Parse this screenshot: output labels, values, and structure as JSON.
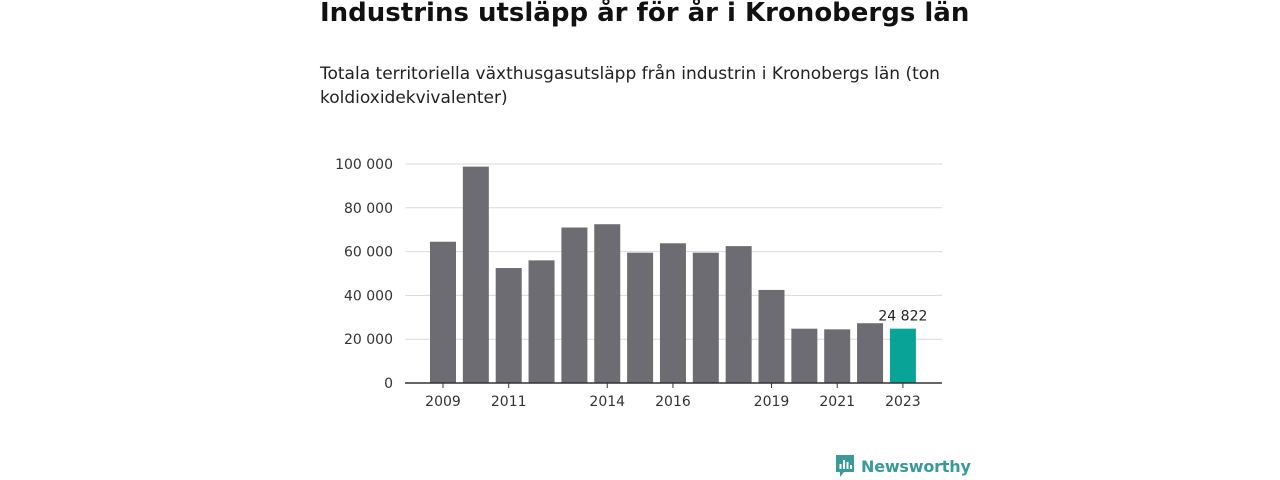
{
  "title": "Industrins utsläpp år för år i Kronobergs län",
  "subtitle": "Totala territoriella växthusgasutsläpp från industrin i Kronobergs län (ton koldioxidekvivalenter)",
  "brand": {
    "name": "Newsworthy",
    "color": "#3a9a9a"
  },
  "chart_data": {
    "type": "bar",
    "categories": [
      "2009",
      "2010",
      "2011",
      "2012",
      "2013",
      "2014",
      "2015",
      "2016",
      "2017",
      "2018",
      "2019",
      "2020",
      "2021",
      "2022",
      "2023"
    ],
    "values": [
      64500,
      98800,
      52500,
      56000,
      71000,
      72500,
      59500,
      63800,
      59500,
      62500,
      42500,
      24800,
      24500,
      27300,
      24822
    ],
    "x_tick_labels": [
      "2009",
      "2011",
      "2014",
      "2016",
      "2019",
      "2021",
      "2023"
    ],
    "y_ticks": [
      0,
      20000,
      40000,
      60000,
      80000,
      100000
    ],
    "y_tick_labels": [
      "0",
      "20 000",
      "40 000",
      "60 000",
      "80 000",
      "100 000"
    ],
    "ylim": [
      0,
      100000
    ],
    "grid": true,
    "highlight": {
      "category": "2023",
      "label": "24 822"
    },
    "colors": {
      "bar": "#6d6c72",
      "highlight": "#0aa398",
      "grid": "#d9d9d9",
      "axis": "#333333"
    }
  }
}
